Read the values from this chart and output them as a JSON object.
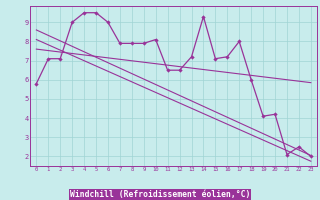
{
  "xlabel": "Windchill (Refroidissement éolien,°C)",
  "background_color": "#c8ecec",
  "line_color": "#993399",
  "xlabel_bg": "#993399",
  "xlabel_fg": "white",
  "xlim_min": -0.5,
  "xlim_max": 23.5,
  "ylim_min": 1.5,
  "ylim_max": 9.85,
  "xticks": [
    0,
    1,
    2,
    3,
    4,
    5,
    6,
    7,
    8,
    9,
    10,
    11,
    12,
    13,
    14,
    15,
    16,
    17,
    18,
    19,
    20,
    21,
    22,
    23
  ],
  "yticks": [
    2,
    3,
    4,
    5,
    6,
    7,
    8,
    9
  ],
  "main_x": [
    0,
    1,
    2,
    3,
    4,
    5,
    6,
    7,
    8,
    9,
    10,
    11,
    12,
    13,
    14,
    15,
    16,
    17,
    18,
    19,
    20,
    21,
    22,
    23
  ],
  "main_y": [
    5.8,
    7.1,
    7.1,
    9.0,
    9.5,
    9.5,
    9.0,
    7.9,
    7.9,
    7.9,
    8.1,
    6.5,
    6.5,
    7.2,
    9.3,
    7.1,
    7.2,
    8.0,
    6.0,
    4.1,
    4.2,
    2.1,
    2.5,
    2.0
  ],
  "trend1_x": [
    0,
    23
  ],
  "trend1_y": [
    8.6,
    2.05
  ],
  "trend2_x": [
    0,
    23
  ],
  "trend2_y": [
    8.1,
    1.75
  ],
  "trend3_x": [
    0,
    23
  ],
  "trend3_y": [
    7.6,
    5.85
  ]
}
